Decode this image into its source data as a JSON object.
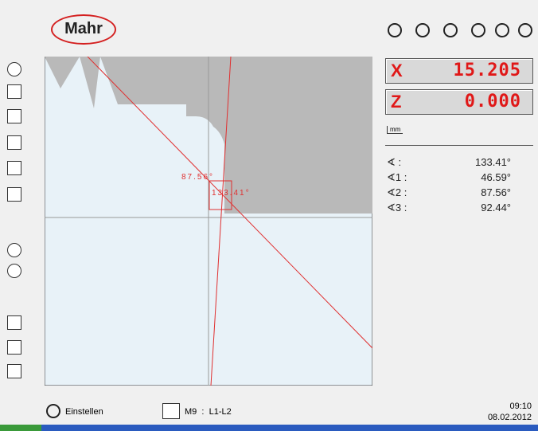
{
  "header": {
    "logo": "Mahr"
  },
  "readouts": [
    {
      "axis": "X",
      "value": "15.205"
    },
    {
      "axis": "Z",
      "value": "0.000"
    }
  ],
  "unit": "mm",
  "angles": [
    {
      "label": "∢ :",
      "value": "133.41°"
    },
    {
      "label": "∢1 :",
      "value": "46.59°"
    },
    {
      "label": "∢2 :",
      "value": "87.56°"
    },
    {
      "label": "∢3 :",
      "value": "92.44°"
    }
  ],
  "overlay": {
    "angle_a": "87.56°",
    "angle_b": "133.41°"
  },
  "footer": {
    "mode": "Einstellen",
    "measure": "M9",
    "separator": ":",
    "elements": "L1-L2",
    "time": "09:10",
    "date": "08.02.2012"
  }
}
